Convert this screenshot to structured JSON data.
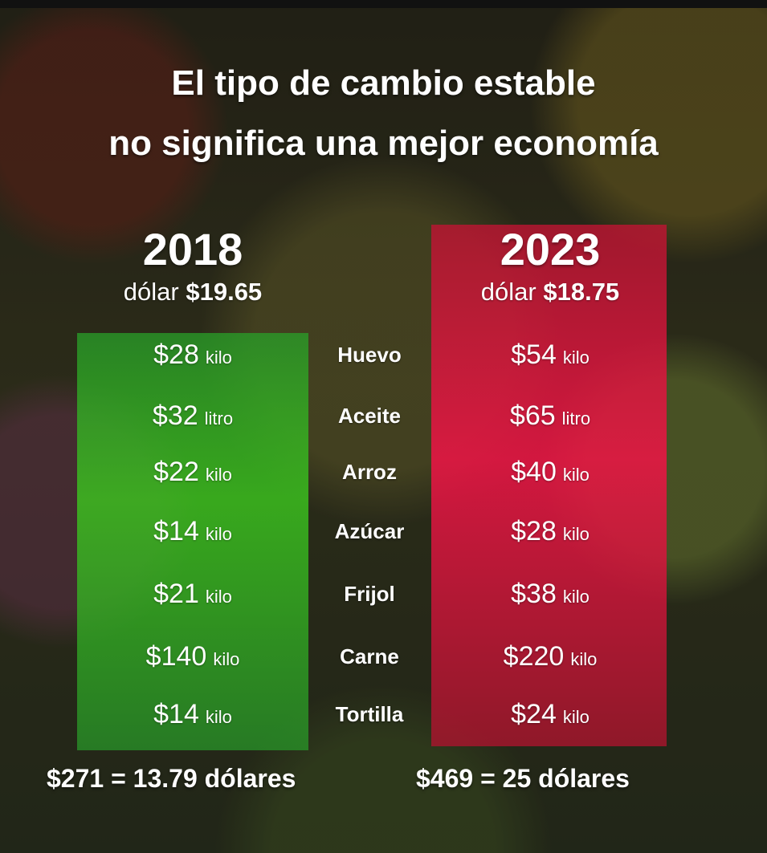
{
  "title": {
    "line1": "El tipo de cambio estable",
    "line2": "no significa una mejor economía"
  },
  "col2018": {
    "year": "2018",
    "dollar_label": "dólar",
    "dollar_value": "$19.65",
    "total": "$271 = 13.79 dólares"
  },
  "col2023": {
    "year": "2023",
    "dollar_label": "dólar",
    "dollar_value": "$18.75",
    "total": "$469 = 25 dólares"
  },
  "rows": [
    {
      "item": "Huevo",
      "p2018": "$28",
      "u2018": "kilo",
      "p2023": "$54",
      "u2023": "kilo"
    },
    {
      "item": "Aceite",
      "p2018": "$32",
      "u2018": "litro",
      "p2023": "$65",
      "u2023": "litro"
    },
    {
      "item": "Arroz",
      "p2018": "$22",
      "u2018": "kilo",
      "p2023": "$40",
      "u2023": "kilo"
    },
    {
      "item": "Azúcar",
      "p2018": "$14",
      "u2018": "kilo",
      "p2023": "$28",
      "u2023": "kilo"
    },
    {
      "item": "Frijol",
      "p2018": "$21",
      "u2018": "kilo",
      "p2023": "$38",
      "u2023": "kilo"
    },
    {
      "item": "Carne",
      "p2018": "$140",
      "u2018": "kilo",
      "p2023": "$220",
      "u2023": "kilo"
    },
    {
      "item": "Tortilla",
      "p2018": "$14",
      "u2018": "kilo",
      "p2023": "$24",
      "u2023": "kilo"
    }
  ],
  "colors": {
    "green_panel": "#3cc81e",
    "red_panel": "#f01446"
  }
}
